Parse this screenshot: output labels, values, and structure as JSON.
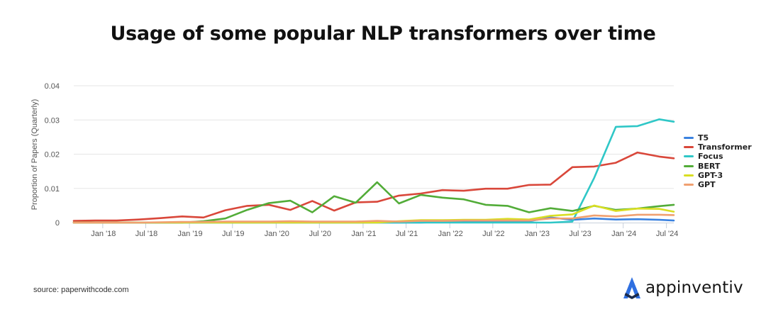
{
  "chart_data": {
    "type": "line",
    "title": "Usage of some popular NLP transformers over time",
    "ylabel": "Proportion of Papers (Quarterly)",
    "xlabel": "",
    "ylim": [
      0,
      0.04
    ],
    "yticks": [
      0,
      0.01,
      0.02,
      0.03,
      0.04
    ],
    "ytick_labels": [
      "0",
      "0.01",
      "0.02",
      "0.03",
      "0.04"
    ],
    "xlim": [
      "2017-09-01",
      "2024-08-01"
    ],
    "xticks": [
      "2018-01-01",
      "2018-07-01",
      "2019-01-01",
      "2019-07-01",
      "2020-01-01",
      "2020-07-01",
      "2021-01-01",
      "2021-07-01",
      "2022-01-01",
      "2022-07-01",
      "2023-01-01",
      "2023-07-01",
      "2024-01-01",
      "2024-07-01"
    ],
    "xtick_labels": [
      "Jan '18",
      "Jul '18",
      "Jan '19",
      "Jul '19",
      "Jan '20",
      "Jul '20",
      "Jan '21",
      "Jul '21",
      "Jan '22",
      "Jul '22",
      "Jan '23",
      "Jul '23",
      "Jan '24",
      "Jul '24"
    ],
    "grid": true,
    "legend_position": "right",
    "x": [
      "2017-09-01",
      "2017-12-01",
      "2018-03-01",
      "2018-06-01",
      "2018-09-01",
      "2018-12-01",
      "2019-03-01",
      "2019-06-01",
      "2019-09-01",
      "2019-12-01",
      "2020-03-01",
      "2020-06-01",
      "2020-09-01",
      "2020-12-01",
      "2021-03-01",
      "2021-06-01",
      "2021-09-01",
      "2021-12-01",
      "2022-03-01",
      "2022-06-01",
      "2022-09-01",
      "2022-12-01",
      "2023-03-01",
      "2023-06-01",
      "2023-09-01",
      "2023-12-01",
      "2024-03-01",
      "2024-06-01",
      "2024-08-01"
    ],
    "series": [
      {
        "name": "T5",
        "color": "#3b82e0",
        "values": [
          0,
          0,
          0,
          0,
          0,
          0,
          0,
          0,
          0,
          0,
          0,
          0,
          0,
          0,
          0,
          0,
          0,
          0.0002,
          0.0003,
          0.0004,
          0.0004,
          0.0004,
          0.0015,
          0.0008,
          0.0012,
          0.0009,
          0.001,
          0.0008,
          0.0006
        ]
      },
      {
        "name": "Transformer",
        "color": "#d9473a",
        "values": [
          0.0005,
          0.0006,
          0.0006,
          0.0009,
          0.0013,
          0.0018,
          0.0015,
          0.0036,
          0.0049,
          0.0052,
          0.0037,
          0.0063,
          0.0035,
          0.0059,
          0.0061,
          0.0079,
          0.0085,
          0.0095,
          0.0093,
          0.0099,
          0.0099,
          0.011,
          0.0111,
          0.0162,
          0.0164,
          0.0175,
          0.0205,
          0.0193,
          0.0188
        ]
      },
      {
        "name": "Focus",
        "color": "#2fc7c7",
        "values": [
          0,
          0,
          0,
          0,
          0,
          0,
          0,
          0,
          0,
          0,
          0,
          0,
          0,
          0,
          0,
          0,
          0,
          0,
          0,
          0,
          0,
          0,
          0,
          0.0003,
          0.0131,
          0.028,
          0.0282,
          0.0302,
          0.0295
        ]
      },
      {
        "name": "BERT",
        "color": "#52ac38",
        "values": [
          0,
          0,
          0,
          0,
          0,
          0,
          0.0004,
          0.0012,
          0.0037,
          0.0057,
          0.0064,
          0.003,
          0.0077,
          0.0058,
          0.0118,
          0.0056,
          0.0081,
          0.0073,
          0.0068,
          0.0052,
          0.0049,
          0.003,
          0.0042,
          0.0034,
          0.0049,
          0.0037,
          0.0041,
          0.0048,
          0.0052
        ]
      },
      {
        "name": "GPT-3",
        "color": "#d9de22",
        "values": [
          0,
          0,
          0,
          0,
          0,
          0,
          0,
          0,
          0,
          0,
          0,
          0,
          0,
          0,
          0,
          0.0004,
          0.0007,
          0.0007,
          0.0008,
          0.0008,
          0.0011,
          0.0009,
          0.002,
          0.0024,
          0.005,
          0.0034,
          0.0041,
          0.004,
          0.0032
        ]
      },
      {
        "name": "GPT",
        "color": "#f0a070",
        "values": [
          0,
          0,
          0,
          0,
          0.0001,
          0.0002,
          0.0002,
          0.0003,
          0.0003,
          0.0003,
          0.0004,
          0.0003,
          0.0003,
          0.0003,
          0.0005,
          0.0003,
          0.0005,
          0.0005,
          0.0006,
          0.0006,
          0.0006,
          0.0006,
          0.0012,
          0.0012,
          0.0021,
          0.0018,
          0.0023,
          0.0023,
          0.0022
        ]
      }
    ]
  },
  "source": "source: paperwithcode.com",
  "logo": {
    "text": "appinventiv",
    "color": "#2f6fe0"
  }
}
